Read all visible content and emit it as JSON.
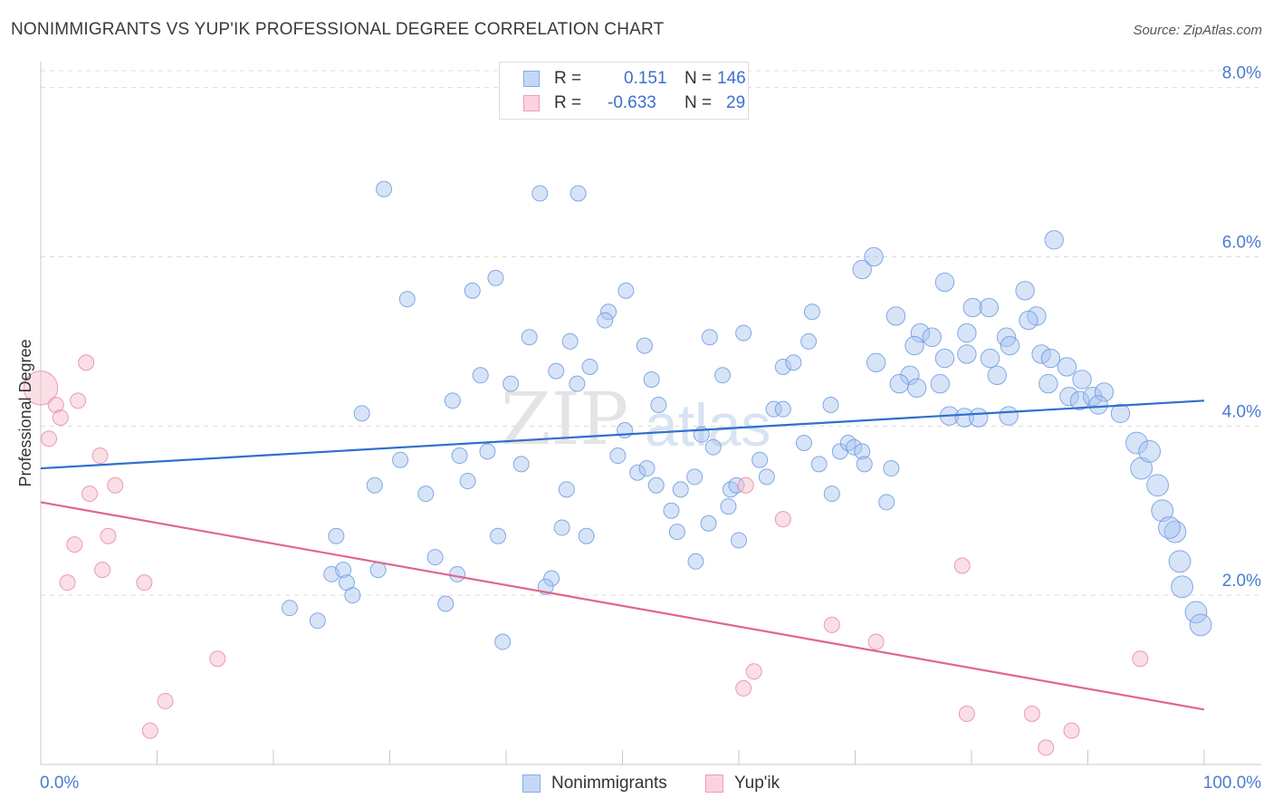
{
  "title": "NONIMMIGRANTS VS YUP'IK PROFESSIONAL DEGREE CORRELATION CHART",
  "source": "Source: ZipAtlas.com",
  "watermark": {
    "zip": "ZIP",
    "atlas": "atlas"
  },
  "legend_top": {
    "rows": [
      {
        "r_label": "R =",
        "r_value": "0.151",
        "n_label": "N =",
        "n_value": "146",
        "color": "#a7c4ef"
      },
      {
        "r_label": "R =",
        "r_value": "-0.633",
        "n_label": "N =",
        "n_value": "29",
        "color": "#f4b8c9"
      }
    ]
  },
  "legend_bottom": {
    "items": [
      {
        "label": "Nonimmigrants",
        "color": "#a7c4ef"
      },
      {
        "label": "Yup'ik",
        "color": "#f4b8c9"
      }
    ]
  },
  "chart_data": {
    "type": "scatter",
    "title": "NONIMMIGRANTS VS YUP'IK PROFESSIONAL DEGREE CORRELATION CHART",
    "xlabel": "",
    "ylabel": "Professional Degree",
    "xlim": [
      0,
      100
    ],
    "ylim": [
      0,
      8.2
    ],
    "x_tick_labels": [
      {
        "value": 0,
        "label": "0.0%"
      },
      {
        "value": 100,
        "label": "100.0%"
      }
    ],
    "x_tick_marks": [
      0,
      10,
      20,
      30,
      40,
      50,
      60,
      70,
      80,
      90,
      100
    ],
    "y_ticks": [
      {
        "value": 2,
        "label": "2.0%"
      },
      {
        "value": 4,
        "label": "4.0%"
      },
      {
        "value": 6,
        "label": "6.0%"
      },
      {
        "value": 8,
        "label": "8.0%"
      }
    ],
    "grid": "horizontal dashed",
    "legend_position": "top-center",
    "series": [
      {
        "name": "Nonimmigrants",
        "color": "#a7c4ef",
        "stroke": "#6f9be0",
        "trend": {
          "x": [
            0,
            100
          ],
          "y": [
            3.5,
            4.3
          ],
          "color": "#2f6fcc"
        },
        "points": [
          [
            40.2,
            7.95,
            1
          ],
          [
            29.5,
            6.8,
            1
          ],
          [
            42.9,
            6.75,
            1
          ],
          [
            46.2,
            6.75,
            1
          ],
          [
            39.1,
            5.75,
            1
          ],
          [
            37.1,
            5.6,
            1
          ],
          [
            31.5,
            5.5,
            1
          ],
          [
            50.3,
            5.6,
            1
          ],
          [
            48.8,
            5.35,
            1
          ],
          [
            48.5,
            5.25,
            1
          ],
          [
            42.0,
            5.05,
            1
          ],
          [
            45.5,
            5.0,
            1
          ],
          [
            51.9,
            4.95,
            1
          ],
          [
            57.5,
            5.05,
            1
          ],
          [
            60.4,
            5.1,
            1
          ],
          [
            66.3,
            5.35,
            1
          ],
          [
            66.0,
            5.0,
            1
          ],
          [
            63.8,
            4.7,
            1
          ],
          [
            64.7,
            4.75,
            1
          ],
          [
            47.2,
            4.7,
            1
          ],
          [
            44.3,
            4.65,
            1
          ],
          [
            37.8,
            4.6,
            1
          ],
          [
            40.4,
            4.5,
            1
          ],
          [
            46.1,
            4.5,
            1
          ],
          [
            52.5,
            4.55,
            1
          ],
          [
            58.6,
            4.6,
            1
          ],
          [
            53.1,
            4.25,
            1
          ],
          [
            27.6,
            4.15,
            1
          ],
          [
            35.4,
            4.3,
            1
          ],
          [
            63.0,
            4.2,
            1
          ],
          [
            63.8,
            4.2,
            1
          ],
          [
            67.9,
            4.25,
            1
          ],
          [
            50.2,
            3.95,
            1
          ],
          [
            56.8,
            3.9,
            1
          ],
          [
            57.8,
            3.75,
            1
          ],
          [
            65.6,
            3.8,
            1
          ],
          [
            68.7,
            3.7,
            1
          ],
          [
            69.4,
            3.8,
            1
          ],
          [
            69.9,
            3.75,
            1
          ],
          [
            70.6,
            3.7,
            1
          ],
          [
            30.9,
            3.6,
            1
          ],
          [
            36.0,
            3.65,
            1
          ],
          [
            38.4,
            3.7,
            1
          ],
          [
            41.3,
            3.55,
            1
          ],
          [
            49.6,
            3.65,
            1
          ],
          [
            51.3,
            3.45,
            1
          ],
          [
            52.1,
            3.5,
            1
          ],
          [
            56.2,
            3.4,
            1
          ],
          [
            61.8,
            3.6,
            1
          ],
          [
            62.4,
            3.4,
            1
          ],
          [
            66.9,
            3.55,
            1
          ],
          [
            70.8,
            3.55,
            1
          ],
          [
            73.1,
            3.5,
            1
          ],
          [
            28.7,
            3.3,
            1
          ],
          [
            33.1,
            3.2,
            1
          ],
          [
            36.7,
            3.35,
            1
          ],
          [
            45.2,
            3.25,
            1
          ],
          [
            52.9,
            3.3,
            1
          ],
          [
            55.0,
            3.25,
            1
          ],
          [
            59.3,
            3.25,
            1
          ],
          [
            59.8,
            3.3,
            1
          ],
          [
            68.0,
            3.2,
            1
          ],
          [
            72.7,
            3.1,
            1
          ],
          [
            54.2,
            3.0,
            1
          ],
          [
            59.1,
            3.05,
            1
          ],
          [
            54.7,
            2.75,
            1
          ],
          [
            57.4,
            2.85,
            1
          ],
          [
            44.8,
            2.8,
            1
          ],
          [
            46.9,
            2.7,
            1
          ],
          [
            39.3,
            2.7,
            1
          ],
          [
            25.4,
            2.7,
            1
          ],
          [
            60.0,
            2.65,
            1
          ],
          [
            33.9,
            2.45,
            1
          ],
          [
            56.3,
            2.4,
            1
          ],
          [
            25.0,
            2.25,
            1
          ],
          [
            26.0,
            2.3,
            1
          ],
          [
            29.0,
            2.3,
            1
          ],
          [
            35.8,
            2.25,
            1
          ],
          [
            43.9,
            2.2,
            1
          ],
          [
            43.4,
            2.1,
            1
          ],
          [
            26.3,
            2.15,
            1
          ],
          [
            26.8,
            2.0,
            1
          ],
          [
            21.4,
            1.85,
            1
          ],
          [
            23.8,
            1.7,
            1
          ],
          [
            34.8,
            1.9,
            1
          ],
          [
            39.7,
            1.45,
            1
          ],
          [
            71.6,
            6.0,
            1.2
          ],
          [
            87.1,
            6.2,
            1.2
          ],
          [
            70.6,
            5.85,
            1.2
          ],
          [
            77.7,
            5.7,
            1.2
          ],
          [
            84.6,
            5.6,
            1.2
          ],
          [
            80.1,
            5.4,
            1.2
          ],
          [
            81.5,
            5.4,
            1.2
          ],
          [
            79.6,
            5.1,
            1.2
          ],
          [
            83.0,
            5.05,
            1.2
          ],
          [
            85.6,
            5.3,
            1.2
          ],
          [
            73.5,
            5.3,
            1.2
          ],
          [
            75.6,
            5.1,
            1.2
          ],
          [
            76.6,
            5.05,
            1.2
          ],
          [
            83.3,
            4.95,
            1.2
          ],
          [
            84.9,
            5.25,
            1.2
          ],
          [
            75.1,
            4.95,
            1.2
          ],
          [
            77.7,
            4.8,
            1.2
          ],
          [
            79.6,
            4.85,
            1.2
          ],
          [
            81.6,
            4.8,
            1.2
          ],
          [
            86.0,
            4.85,
            1.2
          ],
          [
            86.8,
            4.8,
            1.2
          ],
          [
            88.2,
            4.7,
            1.2
          ],
          [
            71.8,
            4.75,
            1.2
          ],
          [
            82.2,
            4.6,
            1.2
          ],
          [
            86.6,
            4.5,
            1.2
          ],
          [
            89.5,
            4.55,
            1.2
          ],
          [
            74.7,
            4.6,
            1.2
          ],
          [
            75.3,
            4.45,
            1.2
          ],
          [
            77.3,
            4.5,
            1.2
          ],
          [
            73.8,
            4.5,
            1.2
          ],
          [
            78.1,
            4.12,
            1.2
          ],
          [
            79.4,
            4.1,
            1.2
          ],
          [
            80.6,
            4.1,
            1.2
          ],
          [
            83.2,
            4.12,
            1.2
          ],
          [
            88.4,
            4.35,
            1.2
          ],
          [
            89.3,
            4.3,
            1.2
          ],
          [
            90.4,
            4.35,
            1.2
          ],
          [
            91.4,
            4.4,
            1.2
          ],
          [
            90.9,
            4.25,
            1.2
          ],
          [
            92.8,
            4.15,
            1.2
          ],
          [
            94.2,
            3.8,
            1.4
          ],
          [
            94.6,
            3.5,
            1.4
          ],
          [
            95.3,
            3.7,
            1.4
          ],
          [
            96.0,
            3.3,
            1.4
          ],
          [
            96.4,
            3.0,
            1.4
          ],
          [
            97.5,
            2.75,
            1.4
          ],
          [
            97.9,
            2.4,
            1.4
          ],
          [
            97.0,
            2.8,
            1.4
          ],
          [
            98.1,
            2.1,
            1.4
          ],
          [
            99.3,
            1.8,
            1.4
          ],
          [
            99.7,
            1.65,
            1.4
          ]
        ]
      },
      {
        "name": "Yup'ik",
        "color": "#f4b8c9",
        "stroke": "#ea8aa6",
        "trend": {
          "x": [
            0,
            100
          ],
          "y": [
            3.1,
            0.65
          ],
          "color": "#e06690"
        },
        "points": [
          [
            0.0,
            4.45,
            2.2
          ],
          [
            3.9,
            4.75,
            1
          ],
          [
            1.3,
            4.25,
            1
          ],
          [
            3.2,
            4.3,
            1
          ],
          [
            1.7,
            4.1,
            1
          ],
          [
            0.7,
            3.85,
            1
          ],
          [
            5.1,
            3.65,
            1
          ],
          [
            6.4,
            3.3,
            1
          ],
          [
            4.2,
            3.2,
            1
          ],
          [
            5.8,
            2.7,
            1
          ],
          [
            2.9,
            2.6,
            1
          ],
          [
            5.3,
            2.3,
            1
          ],
          [
            2.3,
            2.15,
            1
          ],
          [
            8.9,
            2.15,
            1
          ],
          [
            15.2,
            1.25,
            1
          ],
          [
            10.7,
            0.75,
            1
          ],
          [
            9.4,
            0.4,
            1
          ],
          [
            60.6,
            3.3,
            1
          ],
          [
            63.8,
            2.9,
            1
          ],
          [
            79.2,
            2.35,
            1
          ],
          [
            68.0,
            1.65,
            1
          ],
          [
            71.8,
            1.45,
            1
          ],
          [
            61.3,
            1.1,
            1
          ],
          [
            60.4,
            0.9,
            1
          ],
          [
            79.6,
            0.6,
            1
          ],
          [
            85.2,
            0.6,
            1
          ],
          [
            88.6,
            0.4,
            1
          ],
          [
            94.5,
            1.25,
            1
          ],
          [
            86.4,
            0.2,
            1
          ]
        ]
      }
    ]
  }
}
